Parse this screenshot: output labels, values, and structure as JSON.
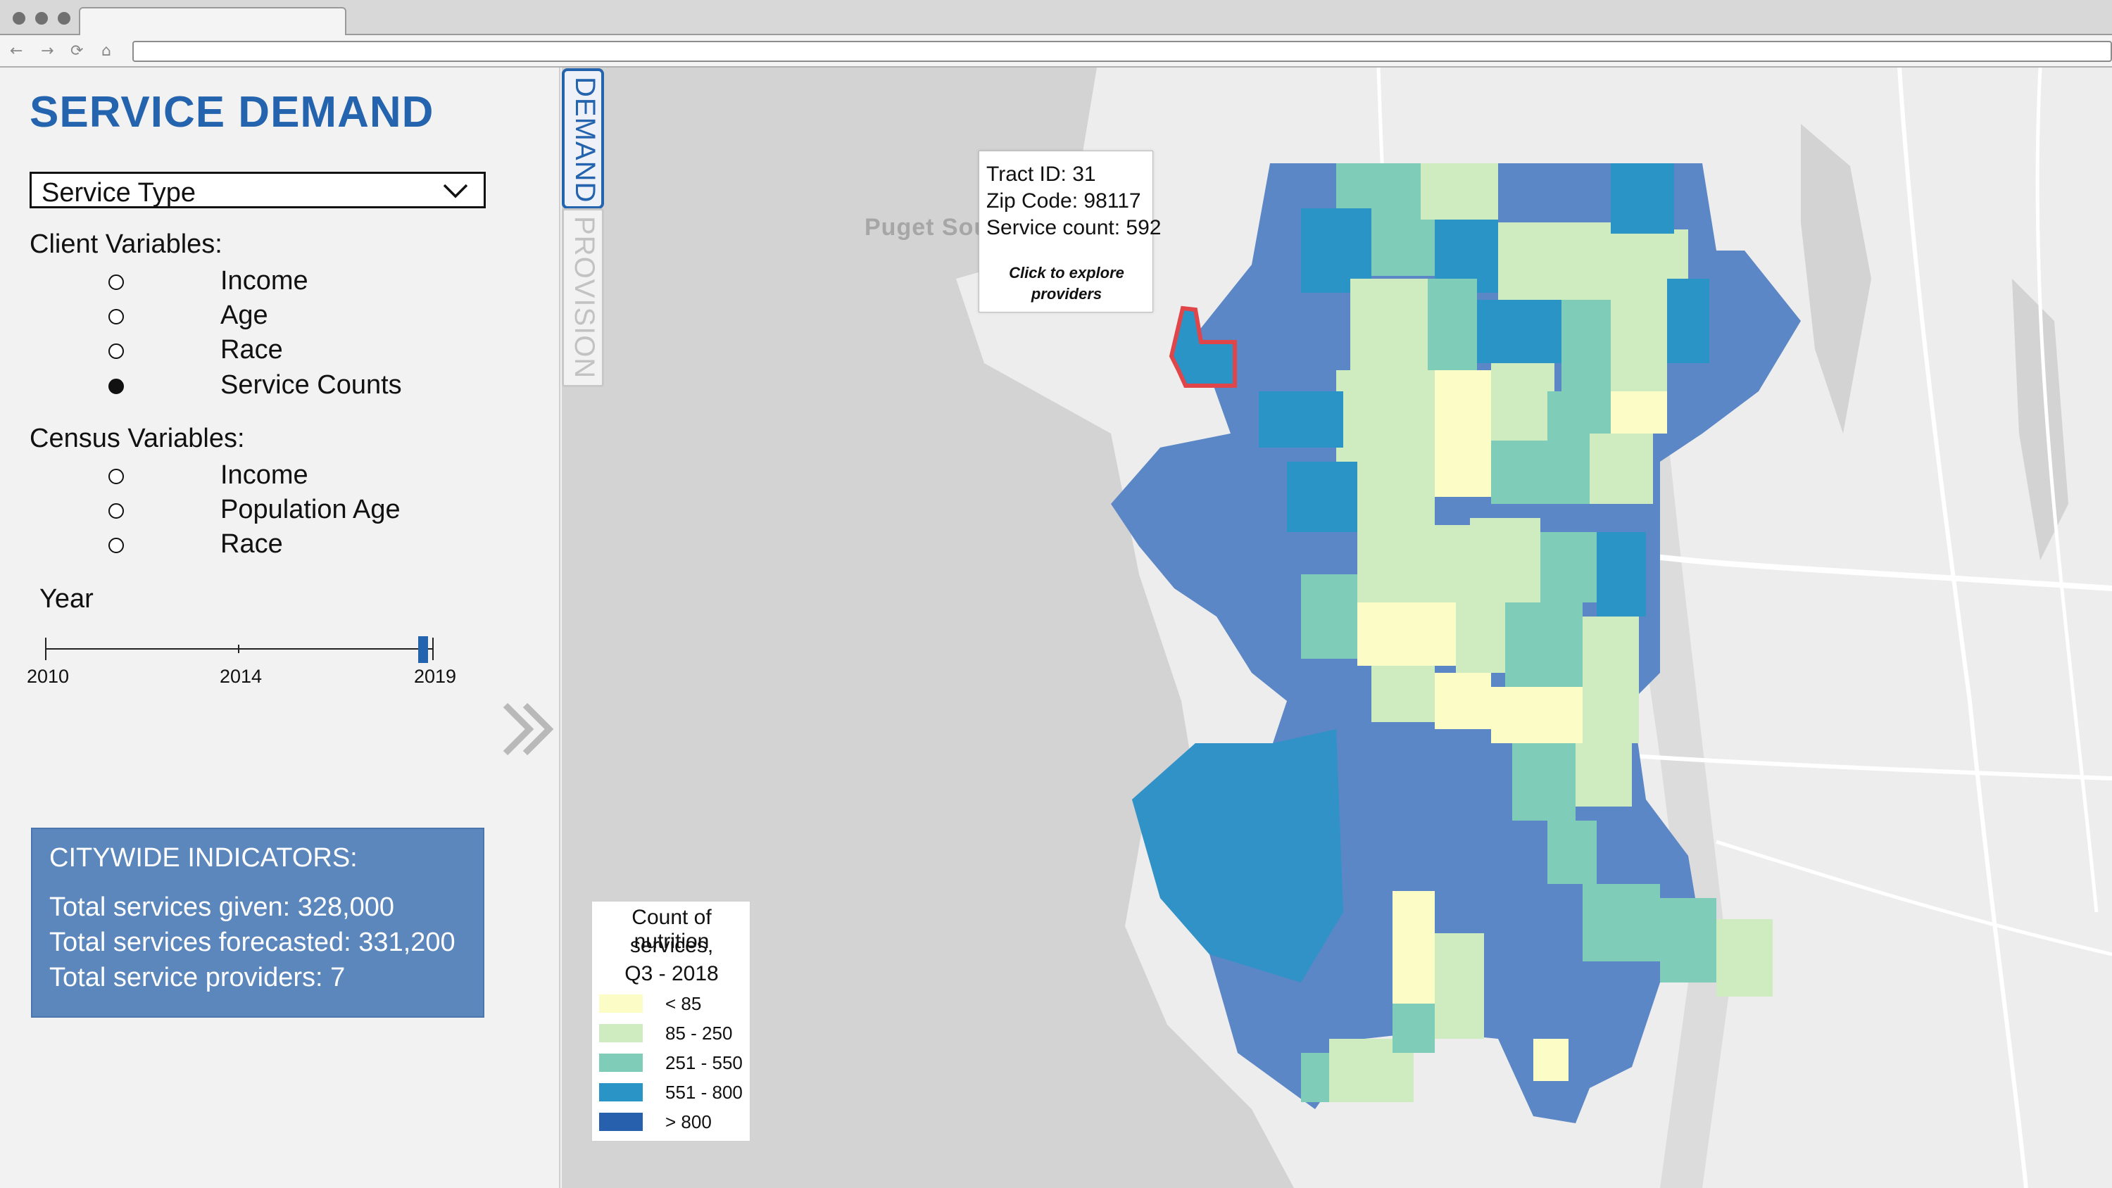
{
  "app": {
    "title": "SERVICE DEMAND",
    "service_type": {
      "selected": "Service Type"
    }
  },
  "client_variables": {
    "label": "Client Variables:",
    "options": [
      {
        "label": "Income",
        "checked": false
      },
      {
        "label": "Age",
        "checked": false
      },
      {
        "label": "Race",
        "checked": false
      },
      {
        "label": "Service Counts",
        "checked": true
      }
    ]
  },
  "census_variables": {
    "label": "Census Variables:",
    "options": [
      {
        "label": "Income",
        "checked": false
      },
      {
        "label": "Population Age",
        "checked": false
      },
      {
        "label": "Race",
        "checked": false
      }
    ]
  },
  "year": {
    "label": "Year",
    "ticks": [
      "2010",
      "2014",
      "2019"
    ],
    "range": [
      2010,
      2019
    ],
    "selected": 2018.75
  },
  "indicators": {
    "title": "CITYWIDE INDICATORS:",
    "lines": [
      "Total services given: 328,000",
      "Total services forecasted: 331,200",
      "Total service providers: 7"
    ]
  },
  "tabs": {
    "demand": "DEMAND",
    "provision": "PROVISION"
  },
  "map": {
    "water_label": "Puget Sou",
    "tooltip": {
      "lines": [
        "Tract ID: 31",
        "Zip Code: 98117",
        "Service count: 592"
      ],
      "note_line1": "Click to explore",
      "note_line2": "providers"
    },
    "legend": {
      "title_lines": [
        "Count of nutrition",
        "services,",
        "Q3 - 2018"
      ],
      "items": [
        {
          "label": "< 85",
          "color": "#fcfdc6"
        },
        {
          "label": "85 - 250",
          "color": "#cfebc0"
        },
        {
          "label": "251 - 550",
          "color": "#7fccb8"
        },
        {
          "label": "551 - 800",
          "color": "#2b94c6"
        },
        {
          "label": "> 800",
          "color": "#2760ad"
        }
      ]
    },
    "colors": {
      "land": "#ededed",
      "water": "#d3d3d3",
      "highlight": "#e0454a"
    }
  }
}
